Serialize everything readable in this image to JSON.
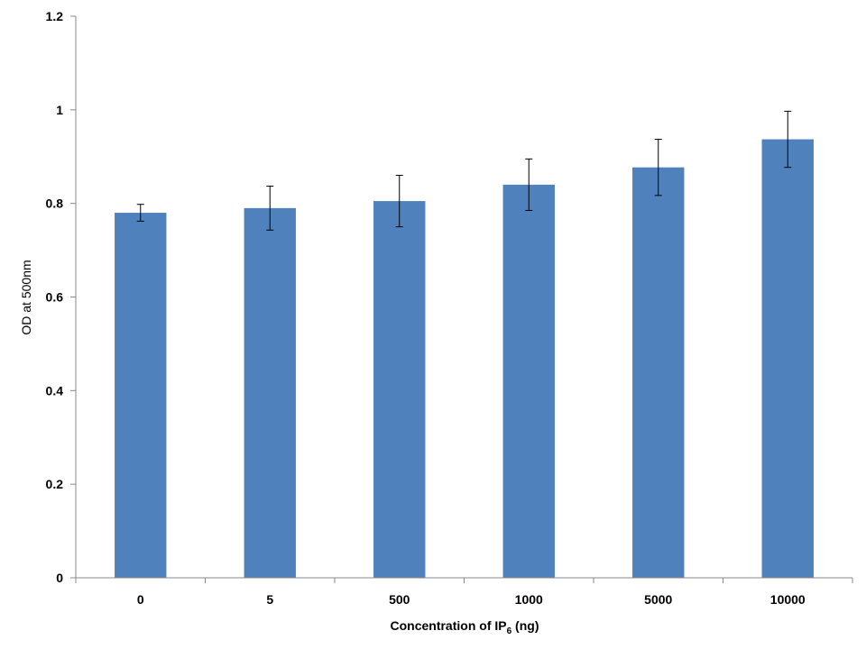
{
  "chart_data": {
    "type": "bar",
    "categories": [
      "0",
      "5",
      "500",
      "1000",
      "5000",
      "10000"
    ],
    "values": [
      0.78,
      0.79,
      0.805,
      0.84,
      0.877,
      0.937
    ],
    "errors": [
      0.018,
      0.047,
      0.055,
      0.055,
      0.06,
      0.06
    ],
    "ylabel": "OD at 500nm",
    "xlabel_main": "Concentration of IP",
    "xlabel_sub": "6",
    "xlabel_tail": " (ng)",
    "ylim": [
      0,
      1.2
    ],
    "yticks": [
      0,
      0.2,
      0.4,
      0.6,
      0.8,
      1,
      1.2
    ],
    "ytick_labels": [
      "0",
      "0.2",
      "0.4",
      "0.6",
      "0.8",
      "1",
      "1.2"
    ],
    "bar_color": "#4f81bd",
    "grid": false,
    "legend": "none"
  }
}
